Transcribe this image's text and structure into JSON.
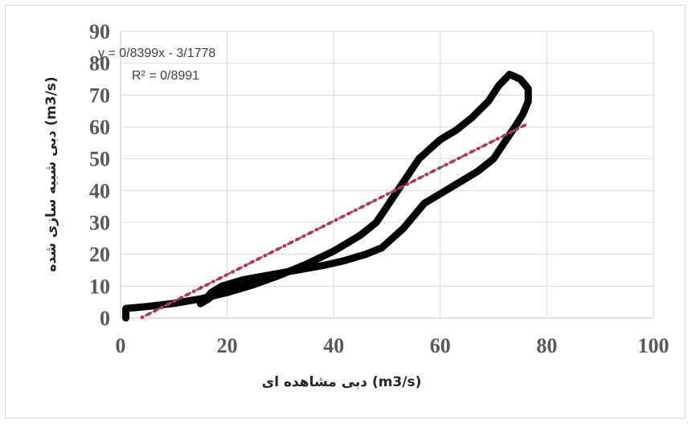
{
  "chart_data": {
    "type": "scatter",
    "title": "",
    "xlabel": "دبی مشاهده ای  (m3/s)",
    "ylabel": "دبی شبیه سازی شده  (m3/s)",
    "xlim": [
      0,
      100
    ],
    "ylim": [
      0,
      90
    ],
    "x_ticks": [
      "0",
      "20",
      "40",
      "60",
      "80",
      "100"
    ],
    "y_ticks": [
      "0",
      "10",
      "20",
      "30",
      "40",
      "50",
      "60",
      "70",
      "80",
      "90"
    ],
    "grid": true,
    "legend": "none",
    "annotations": {
      "equation": "y = 0/8399x - 3/1778",
      "r_squared": "R² = 0/8991"
    },
    "colors": {
      "series": "#000000",
      "trendline_blue": "#4472c4",
      "trendline_red": "#e0202e",
      "grid": "#d9d9d9",
      "tick_text": "#595959"
    },
    "series": [
      {
        "points": [
          [
            1,
            0
          ],
          [
            1,
            2
          ],
          [
            1,
            3
          ],
          [
            5,
            3.6
          ],
          [
            10,
            4.6
          ],
          [
            15,
            6
          ],
          [
            20,
            8
          ],
          [
            25,
            10.5
          ],
          [
            30,
            13.5
          ],
          [
            35,
            17
          ],
          [
            40,
            21
          ],
          [
            45,
            26
          ],
          [
            48,
            30
          ],
          [
            50,
            35
          ],
          [
            52,
            40
          ],
          [
            54,
            45
          ],
          [
            56,
            50
          ],
          [
            58,
            53
          ],
          [
            60,
            56
          ],
          [
            63,
            59
          ],
          [
            66,
            63
          ],
          [
            69,
            68
          ],
          [
            71,
            73
          ],
          [
            73,
            76.5
          ],
          [
            75,
            75
          ],
          [
            76.5,
            72
          ],
          [
            76.5,
            68
          ],
          [
            75.5,
            64
          ],
          [
            74,
            60
          ],
          [
            72,
            55
          ],
          [
            70,
            50
          ],
          [
            67,
            46
          ],
          [
            63,
            42
          ],
          [
            59,
            38
          ],
          [
            57,
            36
          ],
          [
            55,
            32
          ],
          [
            53,
            28
          ],
          [
            51,
            25
          ],
          [
            49,
            22
          ],
          [
            46,
            20
          ],
          [
            42,
            18
          ],
          [
            38,
            16.5
          ],
          [
            33,
            15
          ],
          [
            28,
            13.5
          ],
          [
            23,
            12
          ],
          [
            19,
            10
          ],
          [
            17,
            8
          ],
          [
            16,
            6
          ],
          [
            15,
            4.5
          ],
          [
            16.5,
            6
          ],
          [
            18,
            8
          ],
          [
            21,
            9.5
          ],
          [
            25,
            10.5
          ]
        ]
      }
    ],
    "trendline": {
      "slope": 0.8399,
      "intercept": -3.1778,
      "x_range": [
        4,
        76
      ]
    }
  }
}
